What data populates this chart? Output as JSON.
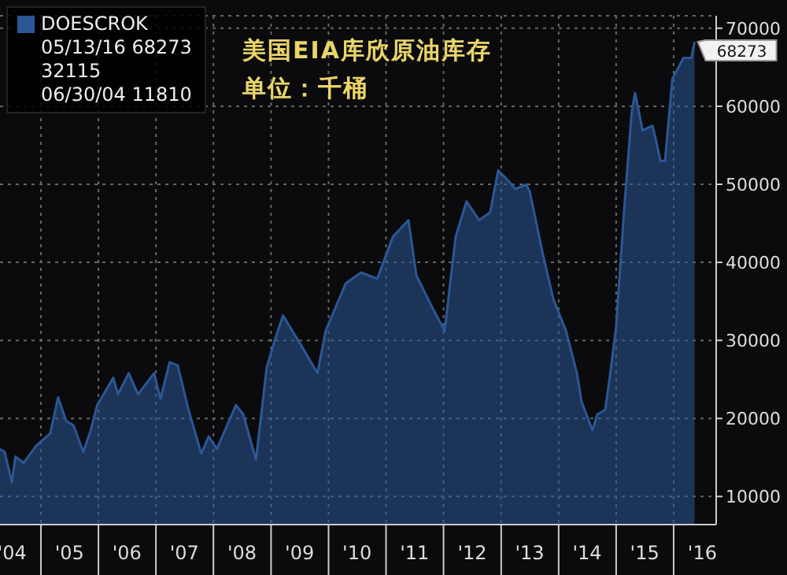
{
  "chart_data": {
    "type": "area",
    "title": "美国EIA库欣原油库存",
    "subtitle": "单位：千桶",
    "annotations": [
      "05/13/16 68273",
      "32115",
      "06/30/04 11810"
    ],
    "legend": "top left",
    "grid": true,
    "xlim": [
      "2004-04-16",
      "2016-09-27"
    ],
    "xticks": [
      {
        "value": "2004-07-01",
        "label": "'04"
      },
      {
        "value": "2005-01-01",
        "label": null
      },
      {
        "value": "2005-07-01",
        "label": "'05"
      },
      {
        "value": "2006-01-01",
        "label": null
      },
      {
        "value": "2006-07-01",
        "label": "'06"
      },
      {
        "value": "2007-01-01",
        "label": null
      },
      {
        "value": "2007-07-01",
        "label": "'07"
      },
      {
        "value": "2008-01-01",
        "label": null
      },
      {
        "value": "2008-07-01",
        "label": "'08"
      },
      {
        "value": "2009-01-01",
        "label": null
      },
      {
        "value": "2009-07-01",
        "label": "'09"
      },
      {
        "value": "2010-01-01",
        "label": null
      },
      {
        "value": "2010-07-01",
        "label": "'10"
      },
      {
        "value": "2011-01-01",
        "label": null
      },
      {
        "value": "2011-07-01",
        "label": "'11"
      },
      {
        "value": "2012-01-01",
        "label": null
      },
      {
        "value": "2012-07-01",
        "label": "'12"
      },
      {
        "value": "2013-01-01",
        "label": null
      },
      {
        "value": "2013-07-01",
        "label": "'13"
      },
      {
        "value": "2014-01-01",
        "label": null
      },
      {
        "value": "2014-07-01",
        "label": "'14"
      },
      {
        "value": "2015-01-01",
        "label": null
      },
      {
        "value": "2015-07-01",
        "label": "'15"
      },
      {
        "value": "2016-01-01",
        "label": null
      },
      {
        "value": "2016-07-01",
        "label": "'16"
      }
    ],
    "ylim": [
      6400,
      71600
    ],
    "yticks": [
      10000,
      20000,
      30000,
      40000,
      50000,
      60000,
      70000
    ],
    "series": [
      {
        "name": "DOESCROK",
        "color": "#2b5796",
        "x": [
          "2004-04-16",
          "2004-05-16",
          "2004-06-30",
          "2004-07-23",
          "2004-09-13",
          "2004-12-02",
          "2005-03-01",
          "2005-04-20",
          "2005-06-10",
          "2005-07-27",
          "2005-09-27",
          "2005-11-13",
          "2005-12-24",
          "2006-04-05",
          "2006-05-05",
          "2006-07-13",
          "2006-09-09",
          "2006-12-20",
          "2007-01-30",
          "2007-03-29",
          "2007-05-19",
          "2007-07-27",
          "2007-10-16",
          "2007-12-02",
          "2008-01-23",
          "2008-05-23",
          "2008-07-09",
          "2008-09-27",
          "2008-12-05",
          "2009-01-27",
          "2009-03-18",
          "2009-07-16",
          "2009-10-23",
          "2009-12-13",
          "2010-04-20",
          "2010-07-27",
          "2010-11-06",
          "2011-02-14",
          "2011-05-23",
          "2011-07-13",
          "2011-10-20",
          "2012-01-08",
          "2012-03-18",
          "2012-05-26",
          "2012-08-14",
          "2012-10-23",
          "2012-12-13",
          "2013-01-30",
          "2013-04-02",
          "2013-06-10",
          "2013-07-02",
          "2013-09-20",
          "2013-11-28",
          "2014-02-17",
          "2014-04-27",
          "2014-05-27",
          "2014-08-04",
          "2014-09-02",
          "2014-10-23",
          "2014-11-21",
          "2015-01-01",
          "2015-02-21",
          "2015-04-09",
          "2015-05-01",
          "2015-06-18",
          "2015-08-19",
          "2015-09-06",
          "2015-10-09",
          "2015-11-07",
          "2015-12-24",
          "2016-03-03",
          "2016-04-23",
          "2016-05-13"
        ],
        "values": [
          16100,
          15700,
          11810,
          15100,
          14300,
          16500,
          18100,
          22700,
          19700,
          19100,
          15700,
          18500,
          21700,
          25200,
          23100,
          25800,
          23100,
          25800,
          22500,
          27200,
          26800,
          21100,
          15500,
          17700,
          16100,
          21700,
          20500,
          14700,
          26600,
          30200,
          33200,
          29200,
          25800,
          31200,
          37300,
          38700,
          37900,
          43300,
          45400,
          38300,
          34300,
          31200,
          43300,
          47800,
          45400,
          46400,
          51800,
          50800,
          49400,
          50000,
          49000,
          41300,
          35300,
          31200,
          25800,
          22100,
          18500,
          20500,
          21100,
          25200,
          31800,
          46800,
          59100,
          61700,
          56900,
          57500,
          56100,
          53000,
          53000,
          63500,
          66200,
          66200,
          68273
        ],
        "value_labels": [
          null,
          null,
          null,
          null,
          null,
          null,
          null,
          null,
          null,
          null,
          null,
          null,
          null,
          null,
          null,
          null,
          null,
          null,
          null,
          null,
          null,
          null,
          null,
          null,
          null,
          null,
          null,
          null,
          null,
          null,
          null,
          null,
          null,
          null,
          null,
          null,
          null,
          null,
          null,
          null,
          null,
          null,
          null,
          null,
          null,
          null,
          null,
          null,
          null,
          null,
          null,
          null,
          null,
          null,
          null,
          null,
          null,
          null,
          null,
          null,
          null,
          null,
          null,
          null,
          null,
          null,
          null,
          null,
          null,
          null,
          null,
          null,
          "68273"
        ]
      }
    ]
  }
}
